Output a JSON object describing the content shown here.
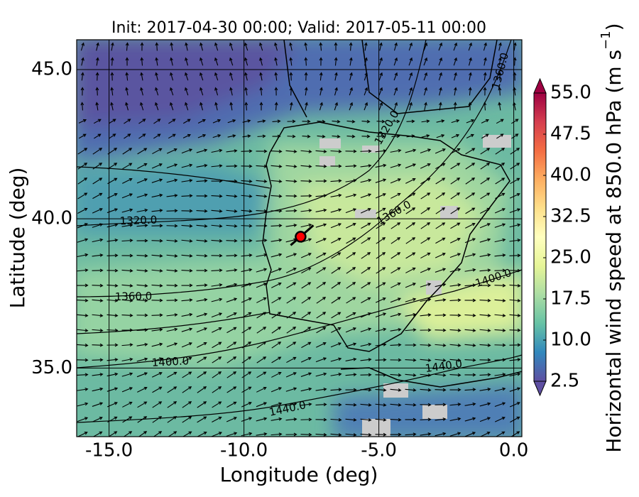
{
  "chart_data": {
    "type": "map",
    "title": "Init: 2017-04-30 00:00; Valid: 2017-05-11 00:00",
    "xlabel": "Longitude (deg)",
    "ylabel": "Latitude (deg)",
    "xlim": [
      -16.2,
      0.3
    ],
    "ylim": [
      32.7,
      46.0
    ],
    "xticks": [
      {
        "value": -15,
        "label": "-15.0"
      },
      {
        "value": -10,
        "label": "-10.0"
      },
      {
        "value": -5,
        "label": "-5.0"
      },
      {
        "value": 0,
        "label": "0.0"
      }
    ],
    "yticks": [
      {
        "value": 35,
        "label": "35.0"
      },
      {
        "value": 40,
        "label": "40.0"
      },
      {
        "value": 45,
        "label": "45.0"
      }
    ],
    "colorbar": {
      "label": {
        "text": "Horizontal wind speed at 850.0 hPa (m s",
        "superscript": "−1",
        "suffix": ")"
      },
      "clim": [
        2.5,
        55
      ],
      "ticks": [
        {
          "value": 2.5,
          "label": "2.5"
        },
        {
          "value": 10,
          "label": "10.0"
        },
        {
          "value": 17.5,
          "label": "17.5"
        },
        {
          "value": 25,
          "label": "25.0"
        },
        {
          "value": 32.5,
          "label": "32.5"
        },
        {
          "value": 40,
          "label": "40.0"
        },
        {
          "value": 47.5,
          "label": "47.5"
        },
        {
          "value": 55,
          "label": "55.0"
        }
      ],
      "colors": [
        "#5e4fa2",
        "#3288bd",
        "#66c2a5",
        "#abdda4",
        "#e6f598",
        "#ffffbf",
        "#fee08b",
        "#fdae61",
        "#f46d43",
        "#d53e4f",
        "#9e0142"
      ]
    },
    "contour_labels": [
      "1320.0",
      "1360.0",
      "1400.0",
      "1440.0",
      "1320.0",
      "1360.0",
      "1360.0",
      "1400.0",
      "1440.0"
    ],
    "marker": {
      "lon": -7.9,
      "lat": 39.4,
      "color": "#ff0000"
    }
  }
}
